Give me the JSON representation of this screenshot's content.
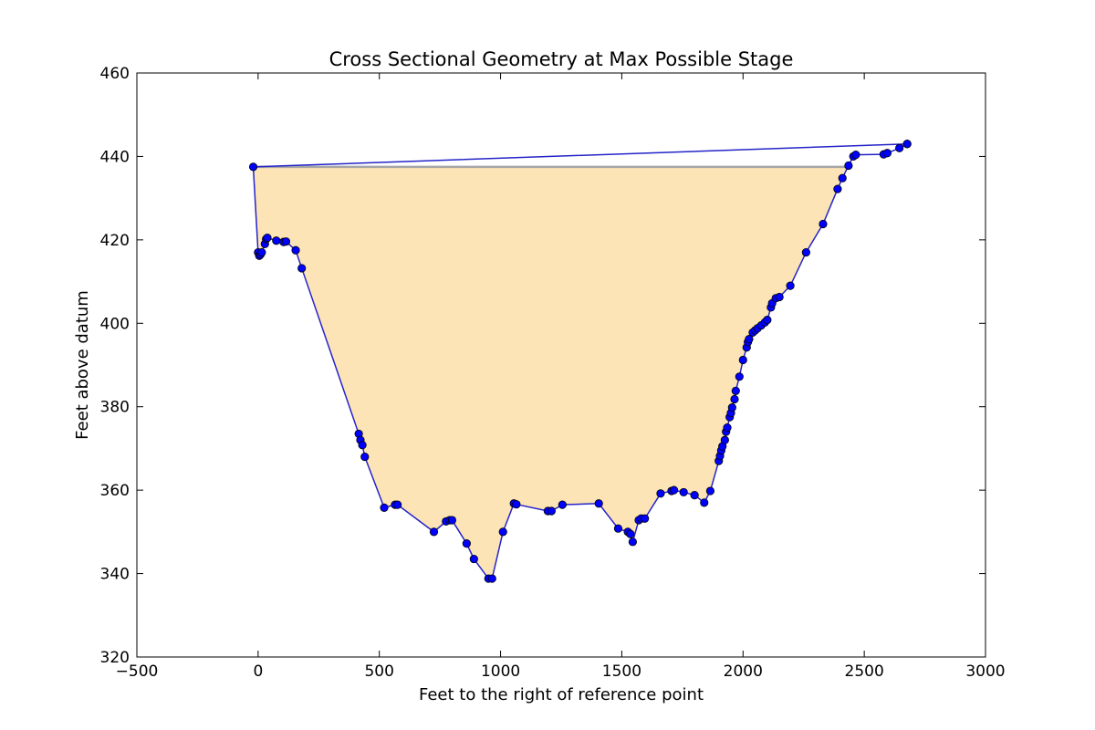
{
  "chart_data": {
    "type": "line",
    "title": "Cross Sectional Geometry at Max Possible Stage",
    "xlabel": "Feet to the right of reference point",
    "ylabel": "Feet above datum",
    "xlim": [
      -500,
      3000
    ],
    "ylim": [
      320,
      460
    ],
    "xticks": [
      -500,
      0,
      500,
      1000,
      1500,
      2000,
      2500,
      3000
    ],
    "yticks": [
      320,
      340,
      360,
      380,
      400,
      420,
      440,
      460
    ],
    "grid": false,
    "legend": "none",
    "colors": {
      "line": "#2424c8",
      "marker": "#0000ff",
      "fill": "#fde4b6",
      "water_surface": "#a6a6a6"
    },
    "water_surface_elevation": 437.5,
    "series": [
      {
        "points": [
          [
            2677,
            443
          ],
          [
            -20,
            437.5
          ],
          [
            0,
            417
          ],
          [
            5,
            416.2
          ],
          [
            10,
            416.5
          ],
          [
            15,
            417
          ],
          [
            28,
            419
          ],
          [
            33,
            420.2
          ],
          [
            38,
            420.5
          ],
          [
            75,
            419.8
          ],
          [
            105,
            419.5
          ],
          [
            115,
            419.6
          ],
          [
            155,
            417.5
          ],
          [
            180,
            413.2
          ],
          [
            415,
            373.5
          ],
          [
            422,
            372
          ],
          [
            430,
            370.8
          ],
          [
            440,
            368
          ],
          [
            520,
            355.8
          ],
          [
            565,
            356.5
          ],
          [
            575,
            356.5
          ],
          [
            725,
            350
          ],
          [
            775,
            352.5
          ],
          [
            790,
            352.8
          ],
          [
            800,
            352.8
          ],
          [
            860,
            347.2
          ],
          [
            890,
            343.5
          ],
          [
            950,
            338.8
          ],
          [
            965,
            338.8
          ],
          [
            1010,
            350
          ],
          [
            1055,
            356.8
          ],
          [
            1065,
            356.6
          ],
          [
            1195,
            355
          ],
          [
            1210,
            355
          ],
          [
            1255,
            356.5
          ],
          [
            1405,
            356.8
          ],
          [
            1485,
            350.8
          ],
          [
            1525,
            350
          ],
          [
            1535,
            349.5
          ],
          [
            1545,
            347.6
          ],
          [
            1570,
            352.8
          ],
          [
            1580,
            353.2
          ],
          [
            1595,
            353.2
          ],
          [
            1660,
            359.2
          ],
          [
            1705,
            359.8
          ],
          [
            1715,
            360
          ],
          [
            1755,
            359.5
          ],
          [
            1800,
            358.8
          ],
          [
            1840,
            357
          ],
          [
            1865,
            359.8
          ],
          [
            1900,
            367
          ],
          [
            1905,
            368.2
          ],
          [
            1910,
            369.5
          ],
          [
            1915,
            370.5
          ],
          [
            1925,
            372
          ],
          [
            1930,
            374
          ],
          [
            1935,
            375
          ],
          [
            1945,
            377.5
          ],
          [
            1950,
            378.5
          ],
          [
            1955,
            379.8
          ],
          [
            1965,
            381.8
          ],
          [
            1970,
            383.8
          ],
          [
            1985,
            387.2
          ],
          [
            2000,
            391.2
          ],
          [
            2015,
            394.2
          ],
          [
            2020,
            395.5
          ],
          [
            2025,
            396.2
          ],
          [
            2040,
            397.8
          ],
          [
            2050,
            398.3
          ],
          [
            2060,
            398.8
          ],
          [
            2075,
            399.5
          ],
          [
            2090,
            400.2
          ],
          [
            2100,
            400.8
          ],
          [
            2115,
            403.8
          ],
          [
            2120,
            404.8
          ],
          [
            2135,
            406
          ],
          [
            2150,
            406.3
          ],
          [
            2195,
            409
          ],
          [
            2260,
            417
          ],
          [
            2330,
            423.8
          ],
          [
            2390,
            432.2
          ],
          [
            2410,
            434.8
          ],
          [
            2435,
            437.8
          ],
          [
            2455,
            440
          ],
          [
            2465,
            440.4
          ],
          [
            2580,
            440.5
          ],
          [
            2595,
            440.8
          ],
          [
            2645,
            442
          ],
          [
            2677,
            443
          ]
        ]
      }
    ]
  }
}
